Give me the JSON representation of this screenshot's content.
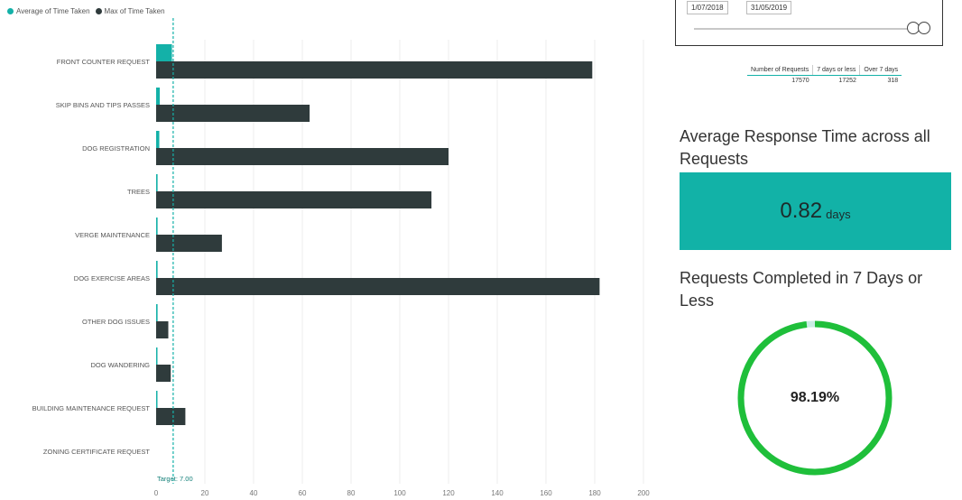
{
  "legend": {
    "items": [
      {
        "label": "Average of Time Taken",
        "color": "#14b1a8"
      },
      {
        "label": "Max of Time Taken",
        "color": "#2f3b3c"
      }
    ]
  },
  "chart_data": {
    "type": "bar",
    "orientation": "horizontal",
    "categories": [
      "FRONT COUNTER REQUEST",
      "SKIP BINS AND TIPS PASSES",
      "DOG REGISTRATION",
      "TREES",
      "VERGE MAINTENANCE",
      "DOG EXERCISE AREAS",
      "OTHER DOG ISSUES",
      "DOG WANDERING",
      "BUILDING MAINTENANCE REQUEST",
      "ZONING CERTIFICATE REQUEST"
    ],
    "series": [
      {
        "name": "Average of Time Taken",
        "color": "#14b1a8",
        "values": [
          6.5,
          1.5,
          1.3,
          0.6,
          0.6,
          0.6,
          0.6,
          0.5,
          0.5,
          0
        ]
      },
      {
        "name": "Max of Time Taken",
        "color": "#2f3b3c",
        "values": [
          179,
          63,
          120,
          113,
          27,
          182,
          5,
          6,
          12,
          0
        ]
      }
    ],
    "xlim": [
      0,
      200
    ],
    "xticks": [
      0,
      20,
      40,
      60,
      80,
      100,
      120,
      140,
      160,
      180,
      200
    ],
    "target": {
      "value": 7,
      "label": "Target: 7.00"
    },
    "grid": true,
    "legend_position": "top-left"
  },
  "slicer": {
    "start_date": "1/07/2018",
    "end_date": "31/05/2019"
  },
  "stats_table": {
    "headers": [
      "Number of Requests",
      "7 days or less",
      "Over 7 days"
    ],
    "row": [
      "17570",
      "17252",
      "318"
    ]
  },
  "avg_card": {
    "title": "Average Response Time across all Requests",
    "value": "0.82",
    "unit": "days",
    "color": "#12b2a7"
  },
  "completed_card": {
    "title": "Requests Completed in 7 Days or Less",
    "value": "98.19%",
    "fraction": 0.9819,
    "ring_color": "#1fbf3a",
    "remainder_color": "#c9ede4"
  }
}
